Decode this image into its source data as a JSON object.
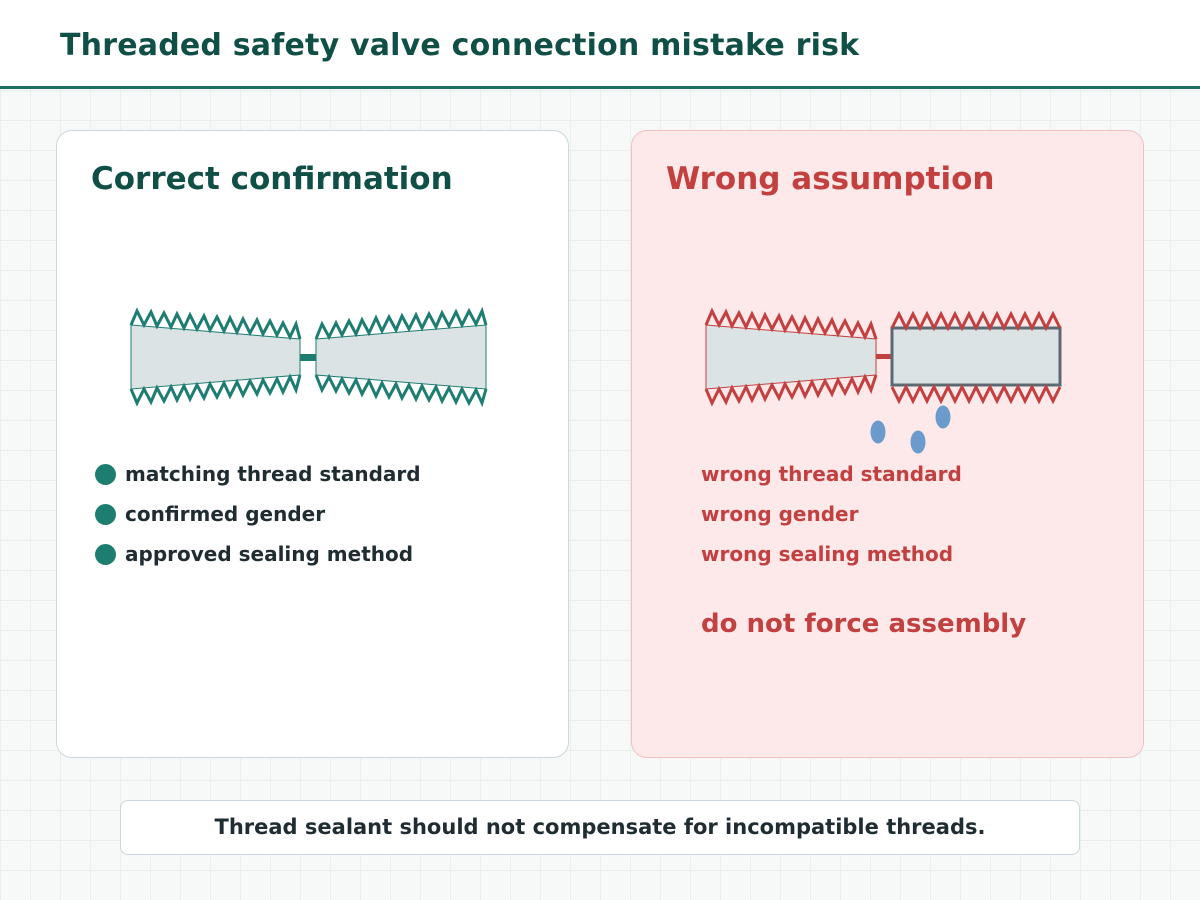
{
  "title": "Threaded safety valve connection mistake risk",
  "colors": {
    "accent": "#1d6f65",
    "correct": "#1d7d71",
    "wrong": "#c2403f",
    "wrong_panel_bg": "#fde9e9",
    "thread_body": "#dce3e4",
    "leak_drops": "#6a9bcc"
  },
  "panels": {
    "correct": {
      "title": "Correct confirmation",
      "items": [
        "matching thread standard",
        "confirmed gender",
        "approved sealing method"
      ]
    },
    "wrong": {
      "title": "Wrong assumption",
      "items": [
        "wrong thread standard",
        "wrong gender",
        "wrong sealing method"
      ],
      "warning": "do not force assembly"
    }
  },
  "footer": {
    "note": "Thread sealant should not compensate for incompatible threads."
  }
}
